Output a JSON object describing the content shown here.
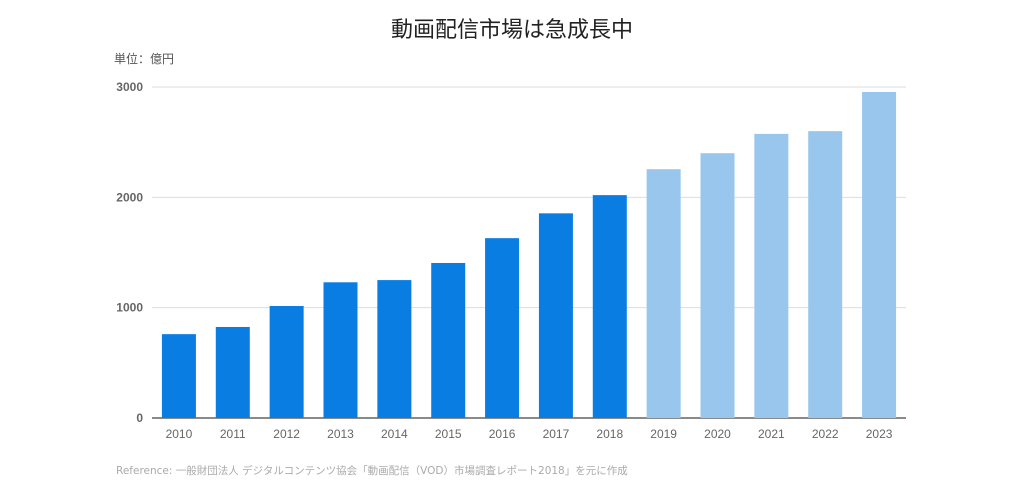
{
  "chart_data": {
    "type": "bar",
    "title": "動画配信市場は急成長中",
    "unit_label": "単位：億円",
    "xlabel": "",
    "ylabel": "",
    "ylim": [
      0,
      3000
    ],
    "yticks": [
      0,
      1000,
      2000,
      3000
    ],
    "grid": true,
    "categories": [
      "2010",
      "2011",
      "2012",
      "2013",
      "2014",
      "2015",
      "2016",
      "2017",
      "2018",
      "2019",
      "2020",
      "2021",
      "2022",
      "2023"
    ],
    "values": [
      760,
      825,
      1015,
      1230,
      1250,
      1405,
      1630,
      1855,
      2020,
      2255,
      2400,
      2575,
      2600,
      2955
    ],
    "actual_color": "#0a7de3",
    "forecast_color": "#99c6ec",
    "forecast_from": "2019",
    "reference": "Reference: 一般財団法人 デジタルコンテンツ協会「動画配信（VOD）市場調査レポート2018」を元に作成"
  }
}
